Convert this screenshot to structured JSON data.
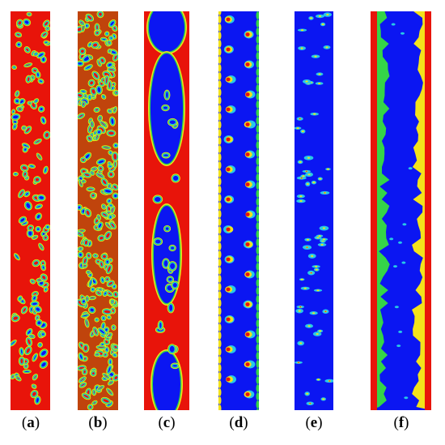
{
  "panels": [
    {
      "id": "a",
      "label": "(a)",
      "letter": "a",
      "description": "dispersed-bubbly-flow"
    },
    {
      "id": "b",
      "label": "(b)",
      "letter": "b",
      "description": "dense-bubbly-flow"
    },
    {
      "id": "c",
      "label": "(c)",
      "letter": "c",
      "description": "slug-flow"
    },
    {
      "id": "d",
      "label": "(d)",
      "letter": "d",
      "description": "churn-flow"
    },
    {
      "id": "e",
      "label": "(e)",
      "letter": "e",
      "description": "mist-flow"
    },
    {
      "id": "f",
      "label": "(f)",
      "letter": "f",
      "description": "annular-flow"
    }
  ],
  "colors": {
    "liquid": "#e8140a",
    "gas": "#0b16f2",
    "interface_yellow": "#f3e21b",
    "interface_green": "#35d448",
    "interface_cyan": "#27c9e6",
    "frame": "#c8c8d8"
  }
}
